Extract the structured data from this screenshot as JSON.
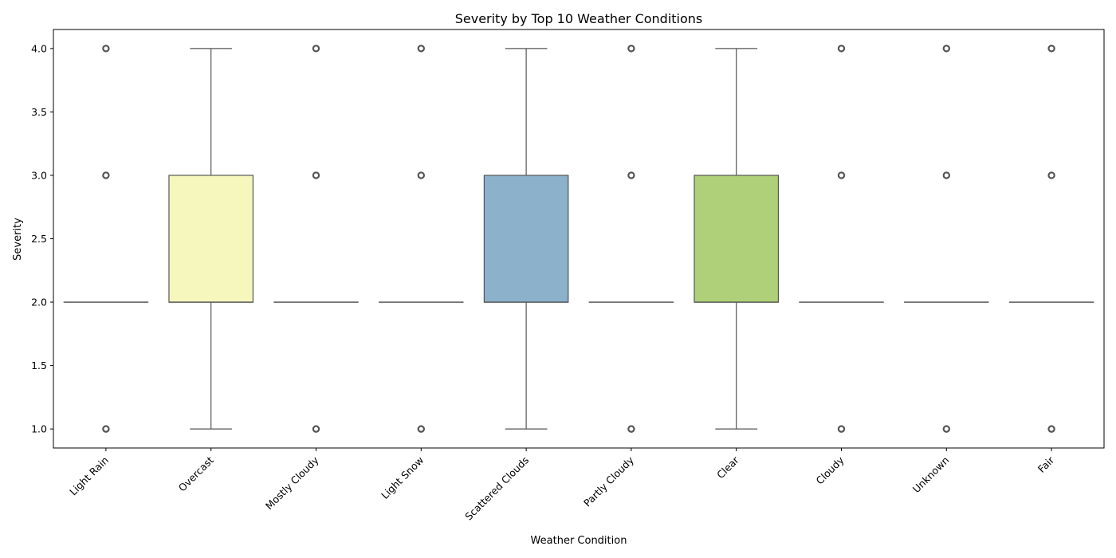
{
  "chart_data": {
    "type": "box",
    "title": "Severity by Top 10 Weather Conditions",
    "xlabel": "Weather Condition",
    "ylabel": "Severity",
    "ylim": [
      0.85,
      4.15
    ],
    "yticks": [
      1.0,
      1.5,
      2.0,
      2.5,
      3.0,
      3.5,
      4.0
    ],
    "ytick_labels": [
      "1.0",
      "1.5",
      "2.0",
      "2.5",
      "3.0",
      "3.5",
      "4.0"
    ],
    "grid": false,
    "categories": [
      "Light Rain",
      "Overcast",
      "Mostly Cloudy",
      "Light Snow",
      "Scattered Clouds",
      "Partly Cloudy",
      "Clear",
      "Cloudy",
      "Unknown",
      "Fair"
    ],
    "boxes": [
      {
        "category": "Light Rain",
        "whisker_low": 2,
        "q1": 2,
        "median": 2,
        "q3": 2,
        "whisker_high": 2,
        "outliers": [
          1,
          3,
          4
        ],
        "color": "#8dd3c7"
      },
      {
        "category": "Overcast",
        "whisker_low": 1,
        "q1": 2,
        "median": 2,
        "q3": 3,
        "whisker_high": 4,
        "outliers": [],
        "color": "#f6f7bc"
      },
      {
        "category": "Mostly Cloudy",
        "whisker_low": 2,
        "q1": 2,
        "median": 2,
        "q3": 2,
        "whisker_high": 2,
        "outliers": [
          1,
          3,
          4
        ],
        "color": "#bebada"
      },
      {
        "category": "Light Snow",
        "whisker_low": 2,
        "q1": 2,
        "median": 2,
        "q3": 2,
        "whisker_high": 2,
        "outliers": [
          1,
          3,
          4
        ],
        "color": "#fb8072"
      },
      {
        "category": "Scattered Clouds",
        "whisker_low": 1,
        "q1": 2,
        "median": 2,
        "q3": 3,
        "whisker_high": 4,
        "outliers": [],
        "color": "#8cb1ca"
      },
      {
        "category": "Partly Cloudy",
        "whisker_low": 2,
        "q1": 2,
        "median": 2,
        "q3": 2,
        "whisker_high": 2,
        "outliers": [
          1,
          3,
          4
        ],
        "color": "#fdb462"
      },
      {
        "category": "Clear",
        "whisker_low": 1,
        "q1": 2,
        "median": 2,
        "q3": 3,
        "whisker_high": 4,
        "outliers": [],
        "color": "#afd078"
      },
      {
        "category": "Cloudy",
        "whisker_low": 2,
        "q1": 2,
        "median": 2,
        "q3": 2,
        "whisker_high": 2,
        "outliers": [
          1,
          3,
          4
        ],
        "color": "#fccde5"
      },
      {
        "category": "Unknown",
        "whisker_low": 2,
        "q1": 2,
        "median": 2,
        "q3": 2,
        "whisker_high": 2,
        "outliers": [
          1,
          3,
          4
        ],
        "color": "#d9d9d9"
      },
      {
        "category": "Fair",
        "whisker_low": 2,
        "q1": 2,
        "median": 2,
        "q3": 2,
        "whisker_high": 2,
        "outliers": [
          1,
          3,
          4
        ],
        "color": "#bc80bd"
      }
    ],
    "line_color": "#555555"
  }
}
